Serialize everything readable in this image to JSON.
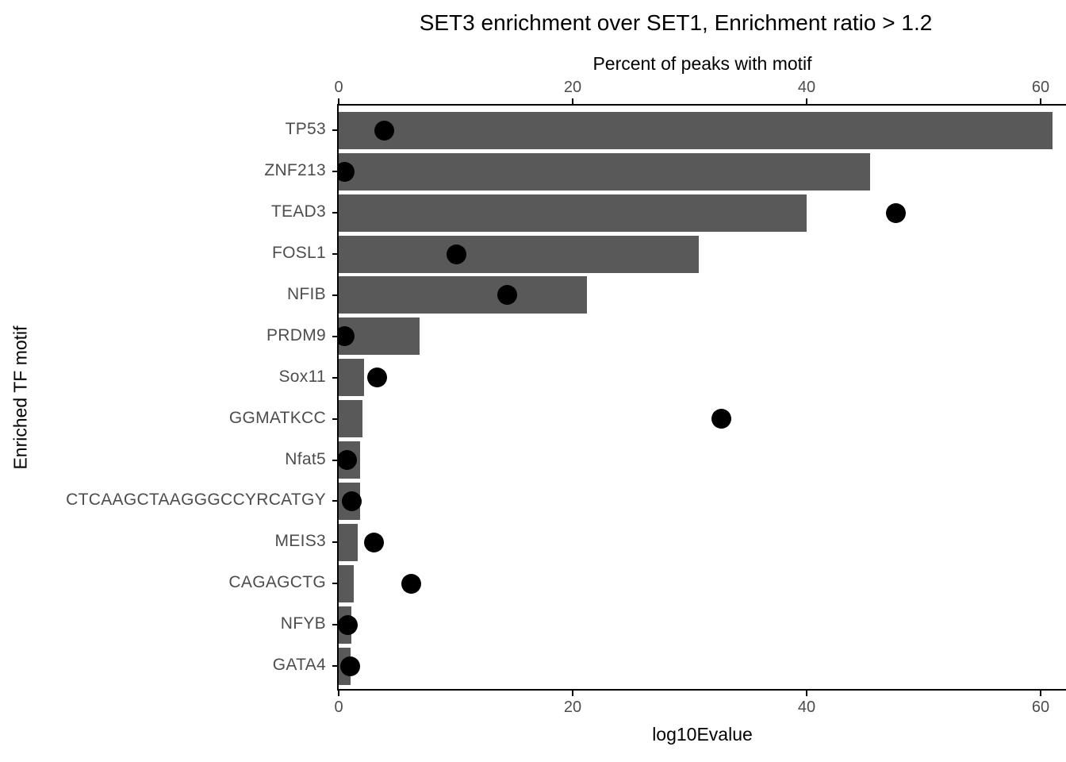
{
  "chart_data": {
    "type": "bar",
    "orientation": "horizontal",
    "title": "SET3 enrichment over SET1, Enrichment ratio > 1.2",
    "top_axis_label": "Percent of peaks with motif",
    "bottom_axis_label": "log10Evalue",
    "ylabel": "Enriched TF motif",
    "categories": [
      "TP53",
      "ZNF213",
      "TEAD3",
      "FOSL1",
      "NFIB",
      "PRDM9",
      "Sox11",
      "GGMATKCC",
      "Nfat5",
      "CTCAAGCTAAGGGCCYRCATGY",
      "MEIS3",
      "CAGAGCTG",
      "NFYB",
      "GATA4"
    ],
    "series": [
      {
        "name": "Percent of peaks with motif",
        "type": "bar",
        "values": [
          61,
          45.4,
          40,
          30.8,
          21.2,
          6.9,
          2.2,
          2.0,
          1.8,
          1.8,
          1.6,
          1.3,
          1.1,
          1.0
        ]
      },
      {
        "name": "log10Evalue",
        "type": "point",
        "values": [
          3.9,
          0.5,
          47.6,
          10.1,
          14.4,
          0.5,
          3.3,
          32.7,
          0.7,
          1.1,
          3.0,
          6.2,
          0.8,
          1.0
        ]
      }
    ],
    "x_ticks": [
      0,
      20,
      40,
      60
    ],
    "x_range": [
      0,
      62
    ],
    "grid": "off",
    "legend": "none",
    "colors": {
      "bar": "#595959",
      "point": "#000000",
      "axis_line": "#000000",
      "axis_text": "#4D4D4D",
      "title_text": "#000000",
      "background": "#FFFFFF"
    }
  }
}
